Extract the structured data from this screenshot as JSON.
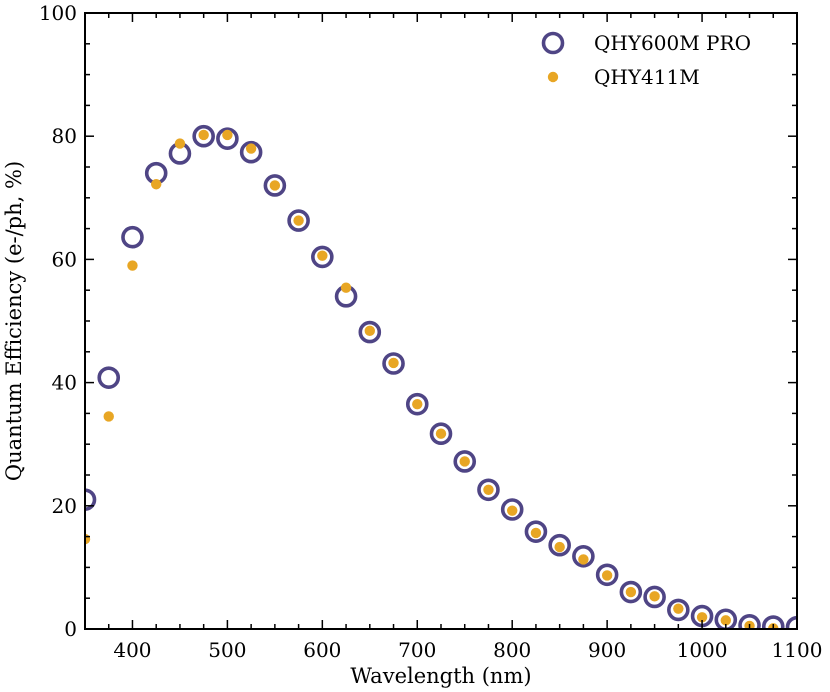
{
  "chart_data": {
    "type": "scatter",
    "title": "",
    "xlabel": "Wavelength (nm)",
    "ylabel": "Quantum Efficiency (e-/ph, %)",
    "xlim": [
      350,
      1100
    ],
    "ylim": [
      0,
      100
    ],
    "xticks": [
      400,
      500,
      600,
      700,
      800,
      900,
      1000,
      1100
    ],
    "yticks": [
      0,
      20,
      40,
      60,
      80,
      100
    ],
    "grid": false,
    "legend_position": "top-right",
    "series": [
      {
        "name": "QHY600M PRO",
        "marker": "open-circle",
        "color": "#4f4585",
        "x": [
          350,
          375,
          400,
          425,
          450,
          475,
          500,
          525,
          550,
          575,
          600,
          625,
          650,
          675,
          700,
          725,
          750,
          775,
          800,
          825,
          850,
          875,
          900,
          925,
          950,
          975,
          1000,
          1025,
          1050,
          1075,
          1100
        ],
        "y": [
          21.0,
          40.8,
          63.6,
          74.0,
          77.2,
          80.0,
          79.6,
          77.4,
          72.0,
          66.3,
          60.4,
          54.0,
          48.2,
          43.1,
          36.5,
          31.7,
          27.2,
          22.6,
          19.4,
          15.8,
          13.6,
          11.8,
          8.8,
          6.0,
          5.2,
          3.1,
          2.1,
          1.5,
          0.6,
          0.4,
          0.3
        ]
      },
      {
        "name": "QHY411M",
        "marker": "filled-dot",
        "color": "#e8a624",
        "x": [
          350,
          375,
          400,
          425,
          450,
          475,
          500,
          525,
          550,
          575,
          600,
          625,
          650,
          675,
          700,
          725,
          750,
          775,
          800,
          825,
          850,
          875,
          900,
          925,
          950,
          975,
          1000,
          1025,
          1050,
          1075
        ],
        "y": [
          14.6,
          34.5,
          59.0,
          72.2,
          78.8,
          80.2,
          80.2,
          78.0,
          72.0,
          66.3,
          60.6,
          55.4,
          48.4,
          43.2,
          36.5,
          31.7,
          27.2,
          22.6,
          19.2,
          15.6,
          13.3,
          11.3,
          8.7,
          6.0,
          5.3,
          3.3,
          1.9,
          1.4,
          0.5,
          0.1
        ]
      }
    ]
  }
}
